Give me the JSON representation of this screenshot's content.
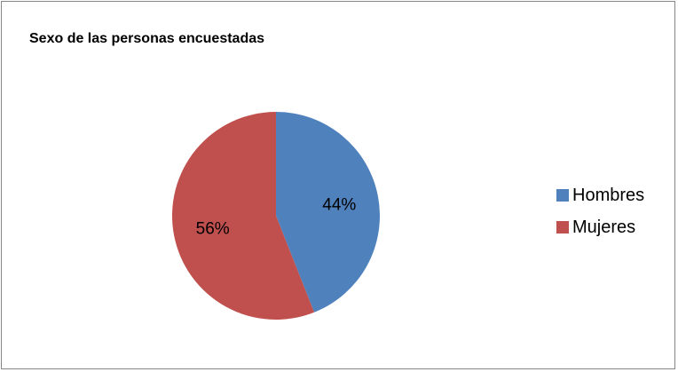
{
  "chart_data": {
    "type": "pie",
    "title": "Sexo de las personas encuestadas",
    "categories": [
      "Hombres",
      "Mujeres"
    ],
    "values": [
      44,
      56
    ],
    "labels": [
      "44%",
      "56%"
    ],
    "colors": [
      "#4F81BD",
      "#C0504D"
    ],
    "start_angle": "12 o'clock, clockwise",
    "legend_position": "right"
  }
}
